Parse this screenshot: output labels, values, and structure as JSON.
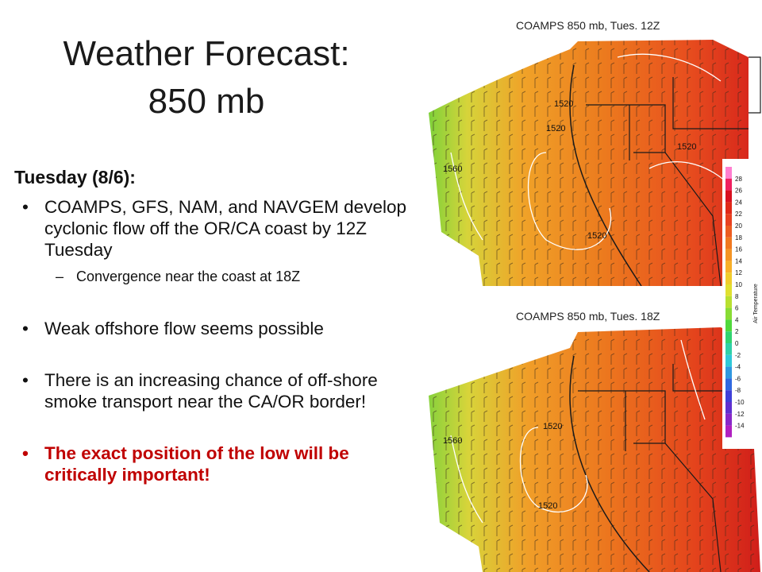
{
  "slide": {
    "title_line1": "Weather Forecast:",
    "title_line2": "850 mb",
    "heading": "Tuesday (8/6):",
    "bullets": [
      "COAMPS, GFS, NAM, and NAVGEM develop cyclonic flow off the OR/CA coast by 12Z Tuesday",
      "Weak offshore flow seems possible",
      "There is an increasing chance of off-shore smoke transport near the CA/OR border!",
      "The exact position of the low will be critically important!"
    ],
    "sub_bullet": "Convergence near the coast at 18Z",
    "emphasis_color": "#c00000"
  },
  "maps": {
    "top_label": "COAMPS 850 mb, Tues. 12Z",
    "bottom_label": "COAMPS 850 mb, Tues. 18Z",
    "top_contours": [
      "1520",
      "1520",
      "1520",
      "1520",
      "1560"
    ],
    "bottom_contours": [
      "1520",
      "1520",
      "1560"
    ],
    "colorbar_title": "Air Temperature",
    "colorbar_ticks": [
      "28",
      "26",
      "24",
      "22",
      "20",
      "18",
      "16",
      "14",
      "12",
      "10",
      "8",
      "6",
      "4",
      "2",
      "0",
      "-2",
      "-4",
      "-6",
      "-8",
      "-10",
      "-12",
      "-14"
    ]
  }
}
